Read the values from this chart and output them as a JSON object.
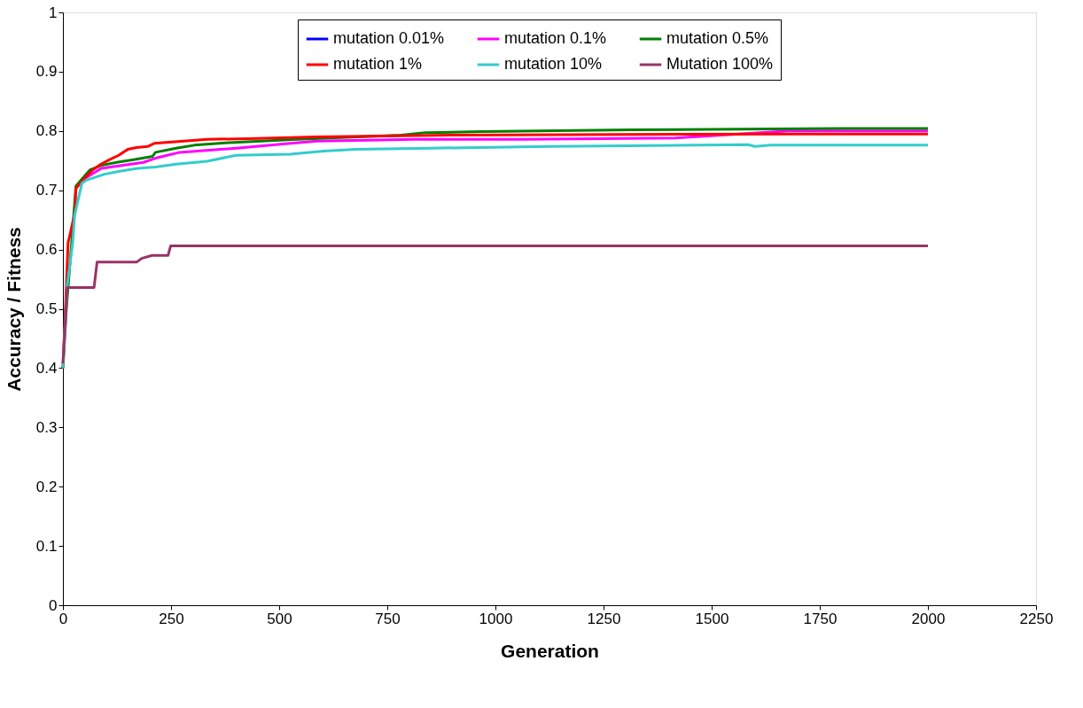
{
  "chart_data": {
    "type": "line",
    "xlabel": "Generation",
    "ylabel": "Accuracy / Fitness",
    "xlim": [
      0,
      2250
    ],
    "xticks": [
      0,
      250,
      500,
      750,
      1000,
      1250,
      1500,
      1750,
      2000,
      2250
    ],
    "ylim": [
      0,
      1
    ],
    "yticks": [
      0,
      0.1,
      0.2,
      0.3,
      0.4,
      0.5,
      0.6,
      0.7,
      0.8,
      0.9,
      1
    ],
    "grid": false,
    "legend": "top",
    "marker": "none",
    "line_style": "solid",
    "series": [
      {
        "name": "mutation 0.01%",
        "color": "#0000ff",
        "values": [
          null
        ]
      },
      {
        "name": "mutation 0.1%",
        "color": "#ff00ff",
        "x": [
          51,
          89,
          186,
          214,
          270,
          401,
          526,
          587,
          813,
          1063,
          1415,
          1678,
          2000
        ],
        "values": [
          0.72,
          0.737,
          0.747,
          0.754,
          0.764,
          0.771,
          0.779,
          0.783,
          0.786,
          0.786,
          0.788,
          0.8,
          0.8
        ]
      },
      {
        "name": "mutation 0.5%",
        "color": "#008000",
        "x": [
          0,
          8,
          20,
          30,
          62,
          89,
          124,
          166,
          207,
          214,
          262,
          304,
          375,
          541,
          782,
          838,
          968,
          1313,
          1796,
          2000
        ],
        "values": [
          0.4,
          0.5,
          0.61,
          0.707,
          0.734,
          0.742,
          0.747,
          0.752,
          0.757,
          0.764,
          0.771,
          0.776,
          0.78,
          0.786,
          0.793,
          0.797,
          0.799,
          0.802,
          0.804,
          0.804
        ]
      },
      {
        "name": "mutation 1%",
        "color": "#ff0000",
        "x": [
          0,
          8,
          12,
          16,
          28,
          30,
          50,
          68,
          88,
          109,
          129,
          150,
          170,
          197,
          211,
          279,
          334,
          430,
          586,
          897,
          1690,
          2000
        ],
        "values": [
          0.4,
          0.54,
          0.612,
          0.624,
          0.663,
          0.703,
          0.72,
          0.734,
          0.744,
          0.752,
          0.759,
          0.769,
          0.772,
          0.774,
          0.779,
          0.783,
          0.786,
          0.787,
          0.79,
          0.793,
          0.795,
          0.795
        ]
      },
      {
        "name": "mutation 10%",
        "color": "#33cccc",
        "x": [
          0,
          10,
          23,
          27,
          44,
          54,
          96,
          131,
          173,
          214,
          262,
          333,
          401,
          526,
          603,
          676,
          853,
          1126,
          1584,
          1600,
          1636,
          2000
        ],
        "values": [
          0.4,
          0.54,
          0.614,
          0.658,
          0.712,
          0.717,
          0.727,
          0.732,
          0.737,
          0.739,
          0.744,
          0.749,
          0.759,
          0.761,
          0.766,
          0.769,
          0.771,
          0.774,
          0.777,
          0.774,
          0.776,
          0.776
        ]
      },
      {
        "name": "Mutation 100%",
        "color": "#993366",
        "x": [
          0,
          10,
          72,
          79,
          171,
          182,
          206,
          243,
          249,
          2000
        ],
        "values": [
          0.408,
          0.536,
          0.536,
          0.579,
          0.579,
          0.585,
          0.59,
          0.59,
          0.606,
          0.606
        ]
      }
    ]
  }
}
